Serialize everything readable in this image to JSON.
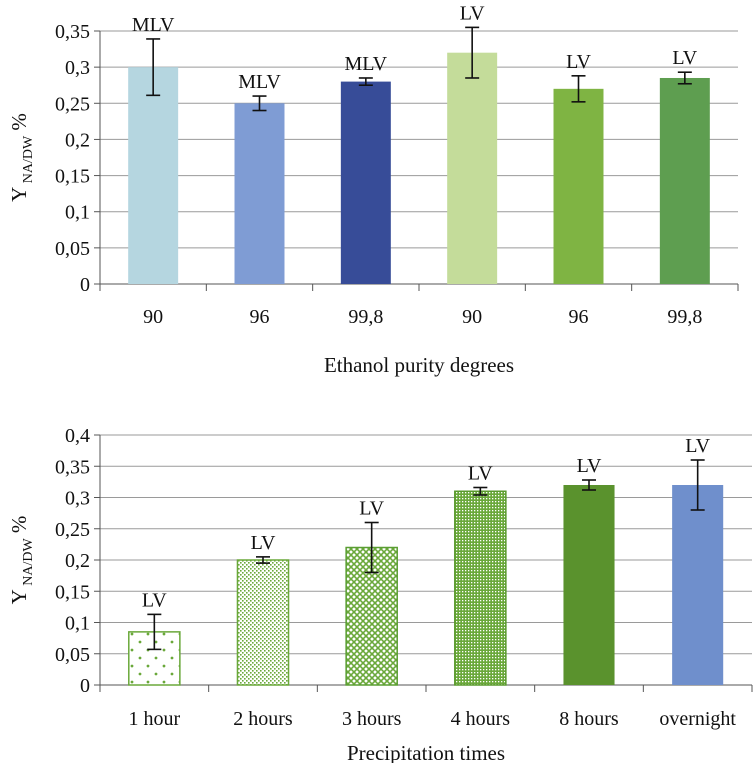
{
  "chart_data": [
    {
      "type": "bar",
      "xlabel": "Ethanol purity degrees",
      "ylabel": "Y",
      "ylabel_sub": "NA/DW",
      "ylabel_unit": "%",
      "ylim": [
        0,
        0.35
      ],
      "yticks": [
        "0",
        "0,05",
        "0,1",
        "0,15",
        "0,2",
        "0,25",
        "0,3",
        "0,35"
      ],
      "grid": true,
      "categories": [
        "90",
        "96",
        "99,8",
        "90",
        "96",
        "99,8"
      ],
      "values": [
        0.3,
        0.25,
        0.28,
        0.32,
        0.27,
        0.285
      ],
      "errors": [
        0.039,
        0.01,
        0.005,
        0.035,
        0.018,
        0.008
      ],
      "labels": [
        "MLV",
        "MLV",
        "MLV",
        "LV",
        "LV",
        "LV"
      ],
      "colors": [
        "#b5d6e0",
        "#7f9cd4",
        "#374c98",
        "#c4dc9a",
        "#7fb443",
        "#5e9e50"
      ]
    },
    {
      "type": "bar",
      "xlabel": "Precipitation times",
      "ylabel": "Y",
      "ylabel_sub": "NA/DW",
      "ylabel_unit": "%",
      "ylim": [
        0,
        0.4
      ],
      "yticks": [
        "0",
        "0,05",
        "0,1",
        "0,15",
        "0,2",
        "0,25",
        "0,3",
        "0,35",
        "0,4"
      ],
      "grid": true,
      "categories": [
        "1 hour",
        "2 hours",
        "3 hours",
        "4 hours",
        "8 hours",
        "overnight"
      ],
      "values": [
        0.085,
        0.2,
        0.22,
        0.31,
        0.32,
        0.32
      ],
      "errors": [
        0.028,
        0.005,
        0.04,
        0.006,
        0.008,
        0.04
      ],
      "labels": [
        "LV",
        "LV",
        "LV",
        "LV",
        "LV",
        "LV"
      ],
      "colors": [
        "#6aa83a",
        "#6aa83a",
        "#5a9e32",
        "#5a9a2e",
        "#5a922d",
        "#6f8fcc"
      ],
      "fill_patterns": [
        "sparse-dots",
        "fine-dots",
        "diamond-grid",
        "dense-grid",
        "solid",
        "solid"
      ]
    }
  ]
}
